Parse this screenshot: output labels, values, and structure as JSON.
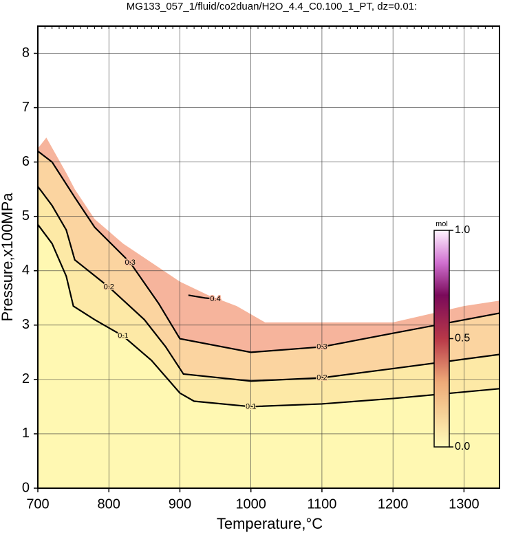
{
  "chart_data": {
    "type": "contour",
    "title": "MG133_057_1/fluid/co2duan/H2O_4.4_C0.100_1_PT, dz=0.01:",
    "x_label": "Temperature,°C",
    "y_label": "Pressure,x100MPa",
    "xlim": [
      700,
      1350
    ],
    "ylim": [
      0,
      8.5
    ],
    "xticks": [
      700,
      800,
      900,
      1000,
      1100,
      1200,
      1300
    ],
    "yticks": [
      0,
      1,
      2,
      3,
      4,
      5,
      6,
      7,
      8
    ],
    "grid": true,
    "domain": {
      "x": [
        700,
        712,
        740,
        752,
        780,
        820,
        860,
        900,
        940,
        980,
        1020,
        1200,
        1300,
        1350
      ],
      "y": [
        6.25,
        6.45,
        5.8,
        5.5,
        4.95,
        4.5,
        4.15,
        3.8,
        3.55,
        3.35,
        3.05,
        3.05,
        3.35,
        3.45
      ]
    },
    "series": [
      {
        "level": 0.1,
        "x": [
          700,
          720,
          740,
          750,
          780,
          820,
          860,
          900,
          920,
          1000,
          1100,
          1200,
          1350
        ],
        "y": [
          4.85,
          4.5,
          3.9,
          3.35,
          3.1,
          2.8,
          2.35,
          1.75,
          1.6,
          1.5,
          1.55,
          1.65,
          1.83
        ]
      },
      {
        "level": 0.2,
        "x": [
          700,
          720,
          740,
          752,
          800,
          850,
          880,
          905,
          1000,
          1100,
          1200,
          1350
        ],
        "y": [
          5.55,
          5.2,
          4.75,
          4.2,
          3.7,
          3.1,
          2.6,
          2.1,
          1.97,
          2.03,
          2.2,
          2.46
        ]
      },
      {
        "level": 0.3,
        "x": [
          700,
          720,
          752,
          780,
          830,
          870,
          900,
          1000,
          1100,
          1200,
          1350
        ],
        "y": [
          6.2,
          6.0,
          5.35,
          4.8,
          4.15,
          3.4,
          2.75,
          2.5,
          2.6,
          2.85,
          3.22
        ]
      },
      {
        "level": 0.4,
        "x": [
          912,
          935,
          950
        ],
        "y": [
          3.55,
          3.5,
          3.48
        ]
      }
    ],
    "colorbar": {
      "label": "mol",
      "lim": [
        0,
        1
      ],
      "ticks": [
        {
          "value": 0,
          "label": "0.0"
        },
        0.5,
        {
          "value": 1,
          "label": "1.0"
        }
      ]
    }
  }
}
